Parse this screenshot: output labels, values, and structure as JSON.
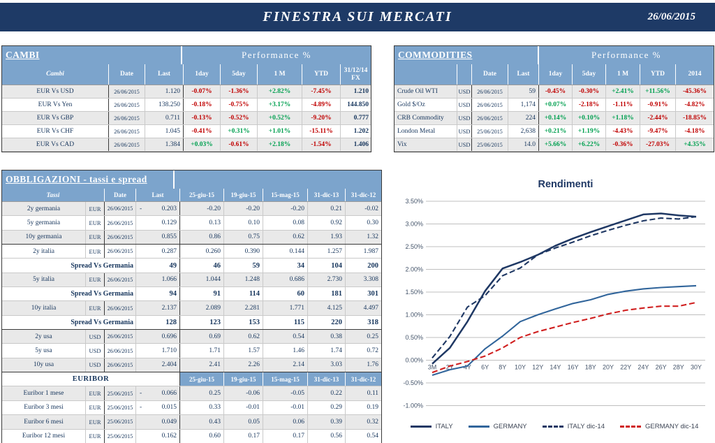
{
  "header": {
    "title": "FINESTRA SUI MERCATI",
    "date": "26/06/2015"
  },
  "colors": {
    "banner_navy": "#1e3a66",
    "header_blue": "#7ca4cc",
    "text_navy": "#17365d",
    "positive": "#00a050",
    "negative": "#c00000",
    "row_shade": "#e9e9e9"
  },
  "cambi": {
    "title": "CAMBI",
    "perf_header": "Performance %",
    "columns": [
      "Cambi",
      "Date",
      "Last",
      "1day",
      "5day",
      "1 M",
      "YTD",
      "31/12/14 FX"
    ],
    "rows": [
      {
        "name": "EUR Vs USD",
        "date": "26/06/2015",
        "last": "1.120",
        "perf": [
          "-0.07%",
          "-1.36%",
          "+2.82%",
          "-7.45%"
        ],
        "fx": "1.210"
      },
      {
        "name": "EUR Vs Yen",
        "date": "26/06/2015",
        "last": "138.250",
        "perf": [
          "-0.18%",
          "-0.75%",
          "+3.17%",
          "-4.89%"
        ],
        "fx": "144.850"
      },
      {
        "name": "EUR Vs GBP",
        "date": "26/06/2015",
        "last": "0.711",
        "perf": [
          "-0.13%",
          "-0.52%",
          "+0.52%",
          "-9.20%"
        ],
        "fx": "0.777"
      },
      {
        "name": "EUR Vs CHF",
        "date": "26/06/2015",
        "last": "1.045",
        "perf": [
          "-0.41%",
          "+0.31%",
          "+1.01%",
          "-15.11%"
        ],
        "fx": "1.202"
      },
      {
        "name": "EUR Vs CAD",
        "date": "26/06/2015",
        "last": "1.384",
        "perf": [
          "+0.03%",
          "-0.61%",
          "+2.18%",
          "-1.54%"
        ],
        "fx": "1.406"
      }
    ]
  },
  "commodities": {
    "title": "COMMODITIES",
    "perf_header": "Performance %",
    "columns": [
      "",
      "",
      "Date",
      "Last",
      "1day",
      "5day",
      "1 M",
      "YTD",
      "2014"
    ],
    "rows": [
      {
        "name": "Crude Oil WTI",
        "cur": "USD",
        "date": "26/06/2015",
        "last": "59",
        "perf": [
          "-0.45%",
          "-0.30%",
          "+2.41%",
          "+11.56%",
          "-45.36%"
        ]
      },
      {
        "name": "Gold $/Oz",
        "cur": "USD",
        "date": "26/06/2015",
        "last": "1,174",
        "perf": [
          "+0.07%",
          "-2.18%",
          "-1.11%",
          "-0.91%",
          "-4.82%"
        ]
      },
      {
        "name": "CRB Commodity",
        "cur": "USD",
        "date": "26/06/2015",
        "last": "224",
        "perf": [
          "+0.14%",
          "+0.10%",
          "+1.18%",
          "-2.44%",
          "-18.85%"
        ]
      },
      {
        "name": "London Metal",
        "cur": "USD",
        "date": "25/06/2015",
        "last": "2,638",
        "perf": [
          "+0.21%",
          "+1.19%",
          "-4.43%",
          "-9.47%",
          "-4.18%"
        ]
      },
      {
        "name": "Vix",
        "cur": "USD",
        "date": "25/06/2015",
        "last": "14.0",
        "perf": [
          "+5.66%",
          "+6.22%",
          "-0.36%",
          "-27.03%",
          "+4.35%"
        ]
      }
    ]
  },
  "obbligazioni": {
    "title": "OBBLIGAZIONI - tassi e spread",
    "subcolumns": {
      "name": "Tassi",
      "date": "Date",
      "last": "Last"
    },
    "value_columns": [
      "25-giu-15",
      "19-giu-15",
      "15-mag-15",
      "31-dic-13",
      "31-dic-12"
    ],
    "rows": [
      {
        "kind": "rate",
        "name": "2y germania",
        "cur": "EUR",
        "date": "26/06/2015",
        "neg": true,
        "last": "0.203",
        "vals": [
          "-0.20",
          "-0.20",
          "-0.20",
          "0.21",
          "-0.02"
        ],
        "shade": true
      },
      {
        "kind": "rate",
        "name": "5y germania",
        "cur": "EUR",
        "date": "26/06/2015",
        "last": "0.129",
        "vals": [
          "0.13",
          "0.10",
          "0.08",
          "0.92",
          "0.30"
        ],
        "shade": false
      },
      {
        "kind": "rate",
        "name": "10y germania",
        "cur": "EUR",
        "date": "26/06/2015",
        "last": "0.855",
        "vals": [
          "0.86",
          "0.75",
          "0.62",
          "1.93",
          "1.32"
        ],
        "shade": true,
        "groupEnd": true
      },
      {
        "kind": "rate",
        "name": "2y italia",
        "cur": "EUR",
        "date": "26/06/2015",
        "last": "0.287",
        "vals": [
          "0.260",
          "0.390",
          "0.144",
          "1.257",
          "1.987"
        ],
        "shade": false
      },
      {
        "kind": "spread",
        "label": "Spread Vs Germania",
        "last": "49",
        "vals": [
          "46",
          "59",
          "34",
          "104",
          "200"
        ]
      },
      {
        "kind": "rate",
        "name": "5y italia",
        "cur": "EUR",
        "date": "26/06/2015",
        "last": "1.066",
        "vals": [
          "1.044",
          "1.248",
          "0.686",
          "2.730",
          "3.308"
        ],
        "shade": true
      },
      {
        "kind": "spread",
        "label": "Spread Vs Germania",
        "last": "94",
        "vals": [
          "91",
          "114",
          "60",
          "181",
          "301"
        ]
      },
      {
        "kind": "rate",
        "name": "10y italia",
        "cur": "EUR",
        "date": "26/06/2015",
        "last": "2.137",
        "vals": [
          "2.089",
          "2.281",
          "1.771",
          "4.125",
          "4.497"
        ],
        "shade": true
      },
      {
        "kind": "spread",
        "label": "Spread Vs Germania",
        "last": "128",
        "vals": [
          "123",
          "153",
          "115",
          "220",
          "318"
        ],
        "groupEnd": true
      },
      {
        "kind": "rate",
        "name": "2y usa",
        "cur": "USD",
        "date": "26/06/2015",
        "last": "0.696",
        "vals": [
          "0.69",
          "0.62",
          "0.54",
          "0.38",
          "0.25"
        ],
        "shade": true
      },
      {
        "kind": "rate",
        "name": "5y usa",
        "cur": "USD",
        "date": "26/06/2015",
        "last": "1.710",
        "vals": [
          "1.71",
          "1.57",
          "1.46",
          "1.74",
          "0.72"
        ],
        "shade": false
      },
      {
        "kind": "rate",
        "name": "10y usa",
        "cur": "USD",
        "date": "26/06/2015",
        "last": "2.404",
        "vals": [
          "2.41",
          "2.26",
          "2.14",
          "3.03",
          "1.76"
        ],
        "shade": true,
        "groupEnd": true
      },
      {
        "kind": "sectionhead",
        "label": "EURIBOR"
      },
      {
        "kind": "rate",
        "name": "Euribor 1 mese",
        "cur": "EUR",
        "date": "25/06/2015",
        "neg": true,
        "last": "0.066",
        "vals": [
          "0.25",
          "-0.06",
          "-0.05",
          "0.22",
          "0.11"
        ],
        "shade": true
      },
      {
        "kind": "rate",
        "name": "Euribor 3 mesi",
        "cur": "EUR",
        "date": "25/06/2015",
        "neg": true,
        "last": "0.015",
        "vals": [
          "0.33",
          "-0.01",
          "-0.01",
          "0.29",
          "0.19"
        ],
        "shade": false
      },
      {
        "kind": "rate",
        "name": "Euribor 6 mesi",
        "cur": "EUR",
        "date": "25/06/2015",
        "last": "0.049",
        "vals": [
          "0.43",
          "0.05",
          "0.06",
          "0.39",
          "0.32"
        ],
        "shade": true
      },
      {
        "kind": "rate",
        "name": "Euribor 12 mesi",
        "cur": "EUR",
        "date": "25/06/2015",
        "last": "0.162",
        "vals": [
          "0.60",
          "0.17",
          "0.17",
          "0.56",
          "0.54"
        ],
        "shade": false
      }
    ]
  },
  "chart_data": {
    "type": "line",
    "title": "Rendimenti",
    "categories": [
      "3M",
      "2Y",
      "4Y",
      "6Y",
      "8Y",
      "10Y",
      "12Y",
      "14Y",
      "16Y",
      "18Y",
      "20Y",
      "22Y",
      "24Y",
      "26Y",
      "28Y",
      "30Y"
    ],
    "unit": "percent",
    "ylim": [
      -1.0,
      3.5
    ],
    "ytick_step": 0.5,
    "ytick_labels": [
      "3.50%",
      "3.00%",
      "2.50%",
      "2.00%",
      "1.50%",
      "1.00%",
      "0.50%",
      "0.00%",
      "-0.50%",
      "-1.00%"
    ],
    "grid": true,
    "legend_position": "bottom",
    "series": [
      {
        "name": "ITALY",
        "color": "#1f3864",
        "dash": false,
        "values": [
          -0.08,
          0.27,
          0.85,
          1.52,
          2.02,
          2.16,
          2.32,
          2.52,
          2.68,
          2.82,
          2.95,
          3.08,
          3.21,
          3.23,
          3.19,
          3.16
        ]
      },
      {
        "name": "GERMANY",
        "color": "#31659b",
        "dash": false,
        "values": [
          -0.33,
          -0.21,
          -0.13,
          0.25,
          0.53,
          0.85,
          1.0,
          1.13,
          1.25,
          1.33,
          1.45,
          1.52,
          1.57,
          1.6,
          1.62,
          1.64
        ]
      },
      {
        "name": "ITALY dic-14",
        "color": "#1f3864",
        "dash": true,
        "values": [
          0.05,
          0.52,
          1.17,
          1.42,
          1.86,
          2.03,
          2.32,
          2.47,
          2.6,
          2.74,
          2.86,
          2.97,
          3.07,
          3.13,
          3.11,
          3.16
        ]
      },
      {
        "name": "GERMANY dic-14",
        "color": "#d02020",
        "dash": true,
        "values": [
          -0.27,
          -0.13,
          -0.03,
          0.09,
          0.27,
          0.5,
          0.63,
          0.73,
          0.83,
          0.92,
          1.02,
          1.1,
          1.15,
          1.19,
          1.19,
          1.27
        ]
      }
    ]
  }
}
